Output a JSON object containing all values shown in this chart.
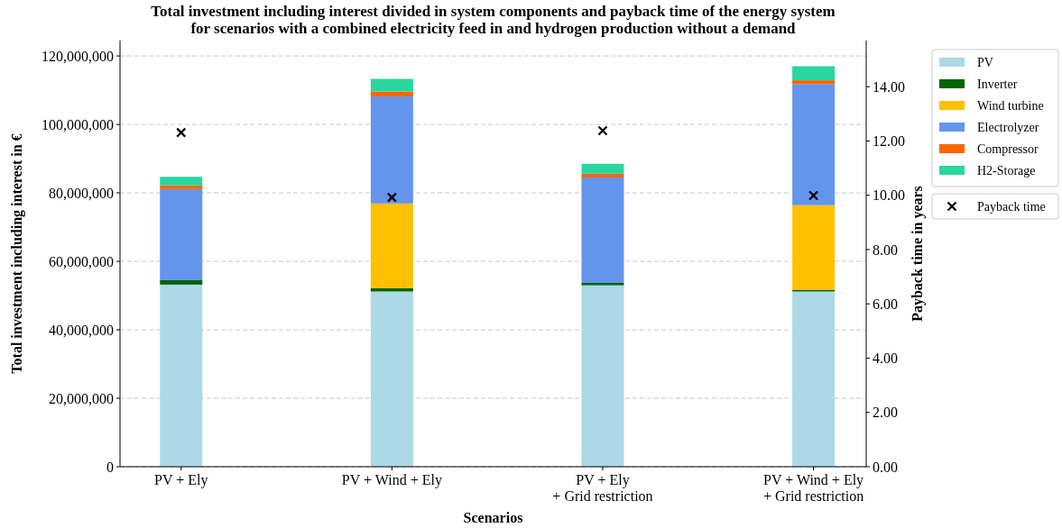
{
  "chart_data": {
    "type": "bar",
    "title": "Total investment including interest divided in system components and payback time of the energy system\nfor scenarios with a combined electricity feed in and hydrogen production without a demand",
    "xlabel": "Scenarios",
    "ylabel": "Total investment including interest in €",
    "y2label": "Payback time in years",
    "categories": [
      "PV + Ely",
      "PV + Wind + Ely",
      "PV + Ely\n+ Grid restriction",
      "PV + Wind + Ely\n+ Grid restriction"
    ],
    "stacked": true,
    "series": [
      {
        "name": "PV",
        "color": "#add8e6",
        "values": [
          53200000,
          51200000,
          53000000,
          51200000
        ]
      },
      {
        "name": "Inverter",
        "color": "#006400",
        "values": [
          1300000,
          1000000,
          700000,
          500000
        ]
      },
      {
        "name": "Wind turbine",
        "color": "#ffc000",
        "values": [
          0,
          24700000,
          0,
          24700000
        ]
      },
      {
        "name": "Electrolyzer",
        "color": "#6495ed",
        "values": [
          26600000,
          31300000,
          30800000,
          35400000
        ]
      },
      {
        "name": "Compressor",
        "color": "#ff6600",
        "values": [
          1100000,
          1400000,
          1100000,
          1100000
        ]
      },
      {
        "name": "H2-Storage",
        "color": "#2ad6a0",
        "values": [
          2500000,
          3700000,
          2900000,
          4100000
        ]
      },
      {
        "name": "Payback time",
        "type": "scatter",
        "axis": "y2",
        "marker": "cross",
        "color": "#000000",
        "x": [
          "PV + Ely",
          "PV + Wind + Ely",
          "PV + Ely\n+ Grid restriction",
          "PV + Wind + Ely\n+ Grid restriction"
        ],
        "values": [
          12.31,
          9.92,
          12.38,
          9.99
        ]
      }
    ],
    "ylim": [
      0,
      124500000
    ],
    "yticks": [
      {
        "value": 0,
        "label": "0"
      },
      {
        "value": 20000000,
        "label": "20,000,000"
      },
      {
        "value": 40000000,
        "label": "40,000,000"
      },
      {
        "value": 60000000,
        "label": "60,000,000"
      },
      {
        "value": 80000000,
        "label": "80,000,000"
      },
      {
        "value": 100000000,
        "label": "100,000,000"
      },
      {
        "value": 120000000,
        "label": "120,000,000"
      }
    ],
    "y2lim": [
      0,
      15.7
    ],
    "y2ticks": [
      {
        "value": 0,
        "label": "0.00"
      },
      {
        "value": 2,
        "label": "2.00"
      },
      {
        "value": 4,
        "label": "4.00"
      },
      {
        "value": 6,
        "label": "6.00"
      },
      {
        "value": 8,
        "label": "8.00"
      },
      {
        "value": 10,
        "label": "10.00"
      },
      {
        "value": 12,
        "label": "12.00"
      },
      {
        "value": 14,
        "label": "14.00"
      }
    ],
    "grid": "y",
    "legend": "right"
  }
}
